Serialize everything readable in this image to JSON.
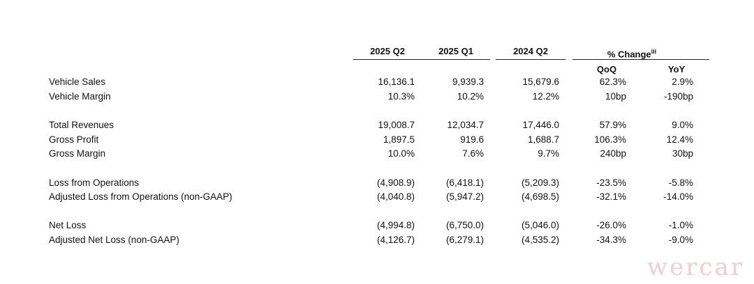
{
  "header": {
    "col1": "2025 Q2",
    "col2": "2025 Q1",
    "col3": "2024 Q2",
    "pct_change": "% Change",
    "pct_change_note": "iii",
    "qoq": "QoQ",
    "yoy": "YoY"
  },
  "rows": [
    {
      "label": "Vehicle Sales",
      "v1": "16,136.1",
      "v2": "9,939.3",
      "v3": "15,679.6",
      "qoq": "62.3%",
      "yoy": "2.9%"
    },
    {
      "label": "Vehicle Margin",
      "v1": "10.3%",
      "v2": "10.2%",
      "v3": "12.2%",
      "qoq": "10bp",
      "yoy": "-190bp"
    },
    {
      "label": "Total Revenues",
      "v1": "19,008.7",
      "v2": "12,034.7",
      "v3": "17,446.0",
      "qoq": "57.9%",
      "yoy": "9.0%"
    },
    {
      "label": "Gross Profit",
      "v1": "1,897.5",
      "v2": "919.6",
      "v3": "1,688.7",
      "qoq": "106.3%",
      "yoy": "12.4%"
    },
    {
      "label": "Gross Margin",
      "v1": "10.0%",
      "v2": "7.6%",
      "v3": "9.7%",
      "qoq": "240bp",
      "yoy": "30bp"
    },
    {
      "label": "Loss from Operations",
      "v1": "(4,908.9)",
      "v2": "(6,418.1)",
      "v3": "(5,209.3)",
      "qoq": "-23.5%",
      "yoy": "-5.8%"
    },
    {
      "label": "Adjusted Loss from Operations (non-GAAP)",
      "v1": "(4,040.8)",
      "v2": "(5,947.2)",
      "v3": "(4,698.5)",
      "qoq": "-32.1%",
      "yoy": "-14.0%"
    },
    {
      "label": "Net Loss",
      "v1": "(4,994.8)",
      "v2": "(6,750.0)",
      "v3": "(5,046.0)",
      "qoq": "-26.0%",
      "yoy": "-1.0%"
    },
    {
      "label": "Adjusted Net Loss (non-GAAP)",
      "v1": "(4,126.7)",
      "v2": "(6,279.1)",
      "v3": "(4,535.2)",
      "qoq": "-34.3%",
      "yoy": "-9.0%"
    }
  ],
  "watermark": "wercar"
}
